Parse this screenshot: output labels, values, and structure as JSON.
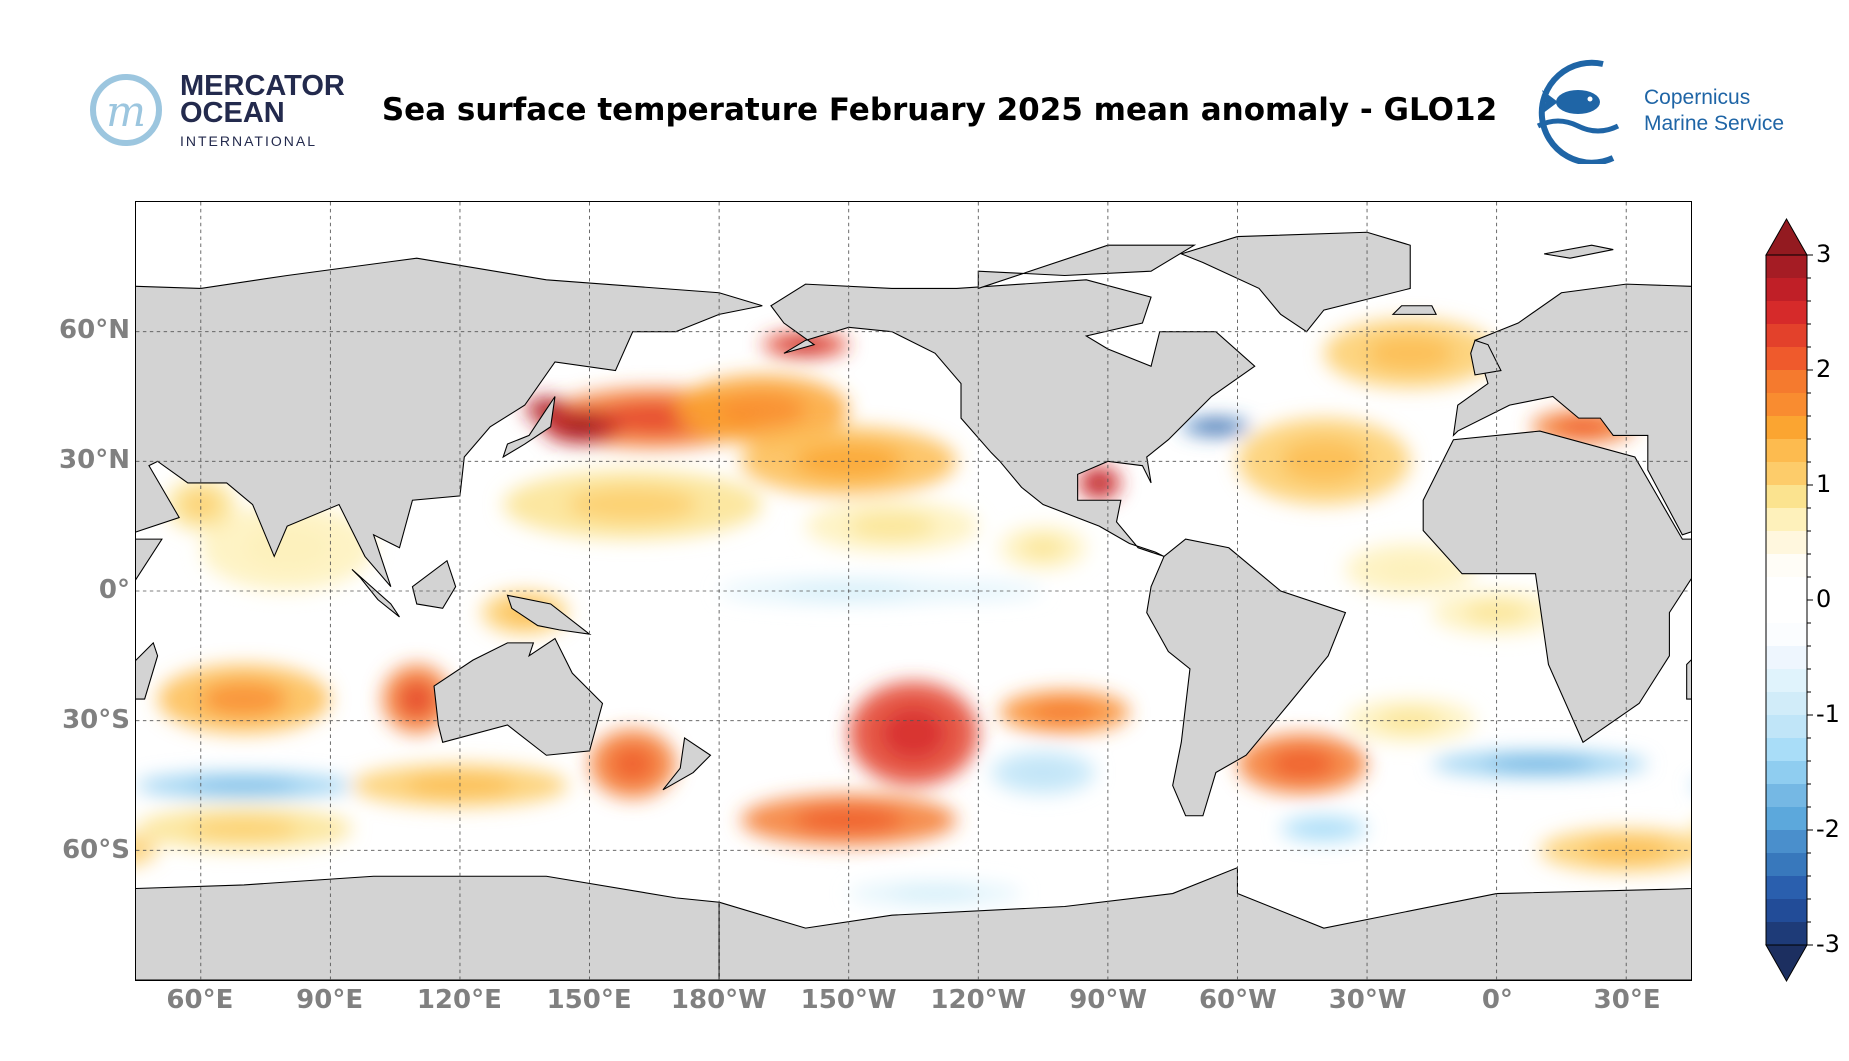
{
  "header": {
    "title": "Sea surface temperature February 2025 mean anomaly - GLO12",
    "left_logo": {
      "line1": "MERCATOR",
      "line2": "OCEAN",
      "line3": "INTERNATIONAL"
    },
    "right_logo": {
      "line1": "Copernicus",
      "line2": "Marine Service"
    }
  },
  "chart_data": {
    "type": "heatmap",
    "title": "Sea surface temperature February 2025 mean anomaly - GLO12",
    "projection": "plate carree",
    "lon_range": [
      45,
      405
    ],
    "lat_range": [
      -90,
      90
    ],
    "grid": true,
    "x_ticks": [
      {
        "lon": 60,
        "label": "60°E"
      },
      {
        "lon": 90,
        "label": "90°E"
      },
      {
        "lon": 120,
        "label": "120°E"
      },
      {
        "lon": 150,
        "label": "150°E"
      },
      {
        "lon": 180,
        "label": "180°W"
      },
      {
        "lon": 210,
        "label": "150°W"
      },
      {
        "lon": 240,
        "label": "120°W"
      },
      {
        "lon": 270,
        "label": "90°W"
      },
      {
        "lon": 300,
        "label": "60°W"
      },
      {
        "lon": 330,
        "label": "30°W"
      },
      {
        "lon": 360,
        "label": "0°"
      },
      {
        "lon": 390,
        "label": "30°E"
      }
    ],
    "y_ticks": [
      {
        "lat": 60,
        "label": "60°N"
      },
      {
        "lat": 30,
        "label": "30°N"
      },
      {
        "lat": 0,
        "label": "0°"
      },
      {
        "lat": -30,
        "label": "30°S"
      },
      {
        "lat": -60,
        "label": "60°S"
      }
    ],
    "colorbar": {
      "range": [
        -3,
        3
      ],
      "step": 0.2,
      "extend": "both",
      "ticks": [
        {
          "value": 3,
          "label": "3"
        },
        {
          "value": 2,
          "label": "2"
        },
        {
          "value": 1,
          "label": "1"
        },
        {
          "value": 0,
          "label": "0"
        },
        {
          "value": -1,
          "label": "-1"
        },
        {
          "value": -2,
          "label": "-2"
        },
        {
          "value": -3,
          "label": "-3"
        }
      ],
      "colors_top_to_bottom": [
        "#a51c24",
        "#c01f27",
        "#d62a2a",
        "#e3412b",
        "#ef5a2c",
        "#f57a2e",
        "#f98c30",
        "#fba531",
        "#fdbb4f",
        "#fdcc6a",
        "#fbe38f",
        "#fef1bb",
        "#fff7de",
        "#fffdf7",
        "#ffffff",
        "#ffffff",
        "#fbfdff",
        "#eef6fe",
        "#e0f3fc",
        "#d1ecf9",
        "#c0e5f8",
        "#a9ddf8",
        "#8fcdf0",
        "#75b8e4",
        "#5ca8dc",
        "#4a8fcc",
        "#3878bc",
        "#2a5fae",
        "#224c98",
        "#1e3b78"
      ],
      "over_color": "#931a20",
      "under_color": "#1c2f60"
    },
    "anomaly_regions": [
      [
        165,
        40,
        25,
        7,
        2.0
      ],
      [
        -170,
        42,
        20,
        8,
        1.5
      ],
      [
        -150,
        30,
        25,
        8,
        1.3
      ],
      [
        148,
        38,
        9,
        4,
        2.8
      ],
      [
        -160,
        57,
        10,
        3,
        2.4
      ],
      [
        140,
        42,
        5,
        3,
        2.8
      ],
      [
        160,
        20,
        30,
        8,
        1.0
      ],
      [
        -140,
        15,
        20,
        6,
        0.8
      ],
      [
        -150,
        0,
        30,
        3,
        -0.8
      ],
      [
        -120,
        0,
        15,
        2,
        -0.6
      ],
      [
        -135,
        -33,
        15,
        12,
        2.2
      ],
      [
        -150,
        -53,
        25,
        6,
        1.8
      ],
      [
        -100,
        -28,
        15,
        5,
        1.6
      ],
      [
        -105,
        -42,
        12,
        5,
        -1.0
      ],
      [
        -130,
        -70,
        20,
        3,
        -0.8
      ],
      [
        70,
        -25,
        20,
        8,
        1.4
      ],
      [
        110,
        -25,
        8,
        8,
        2.0
      ],
      [
        70,
        -45,
        25,
        3,
        -1.5
      ],
      [
        120,
        -45,
        25,
        5,
        1.2
      ],
      [
        70,
        -55,
        25,
        5,
        1.0
      ],
      [
        80,
        10,
        20,
        10,
        0.6
      ],
      [
        60,
        20,
        8,
        6,
        1.0
      ],
      [
        -40,
        30,
        20,
        10,
        1.2
      ],
      [
        -45,
        -40,
        15,
        7,
        1.8
      ],
      [
        -65,
        38,
        8,
        2,
        -2.3
      ],
      [
        -92,
        25,
        5,
        4,
        2.5
      ],
      [
        0,
        -5,
        15,
        5,
        0.8
      ],
      [
        -20,
        5,
        15,
        6,
        0.6
      ],
      [
        10,
        -40,
        25,
        3,
        -1.6
      ],
      [
        -40,
        -55,
        10,
        3,
        -1.2
      ],
      [
        -20,
        55,
        20,
        8,
        1.2
      ],
      [
        20,
        38,
        12,
        4,
        1.8
      ],
      [
        20,
        58,
        5,
        3,
        2.5
      ],
      [
        30,
        -60,
        20,
        5,
        1.2
      ],
      [
        -40,
        72,
        10,
        3,
        -0.6
      ],
      [
        -20,
        -30,
        15,
        5,
        0.8
      ],
      [
        160,
        -40,
        10,
        8,
        1.8
      ],
      [
        135,
        -5,
        10,
        5,
        1.2
      ],
      [
        -105,
        10,
        10,
        5,
        0.7
      ]
    ]
  }
}
